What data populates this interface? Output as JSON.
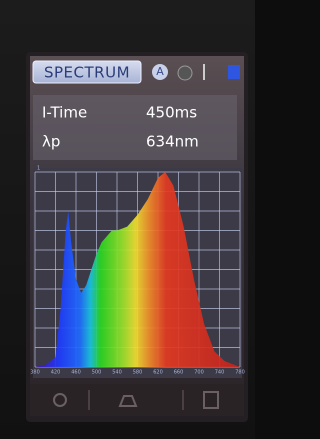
{
  "header": {
    "title": "SPECTRUM"
  },
  "readings": [
    {
      "label": "I-Time",
      "value": "450ms"
    },
    {
      "label": "λp",
      "value": "634nm"
    }
  ],
  "chart_data": {
    "type": "area",
    "x": [
      380,
      400,
      420,
      430,
      440,
      445,
      450,
      460,
      470,
      480,
      490,
      500,
      510,
      520,
      530,
      540,
      560,
      580,
      600,
      620,
      634,
      650,
      670,
      690,
      710,
      730,
      750,
      780
    ],
    "values": [
      0,
      0.01,
      0.05,
      0.3,
      0.7,
      0.8,
      0.65,
      0.45,
      0.38,
      0.42,
      0.5,
      0.58,
      0.64,
      0.67,
      0.7,
      0.7,
      0.72,
      0.78,
      0.86,
      0.97,
      1,
      0.93,
      0.72,
      0.45,
      0.22,
      0.08,
      0.03,
      0
    ],
    "xlim": [
      380,
      780
    ],
    "xticks": [
      380,
      420,
      460,
      500,
      540,
      580,
      620,
      660,
      700,
      740,
      780
    ],
    "ylim": [
      0,
      1
    ],
    "yticks": [
      1
    ],
    "grid": true
  }
}
